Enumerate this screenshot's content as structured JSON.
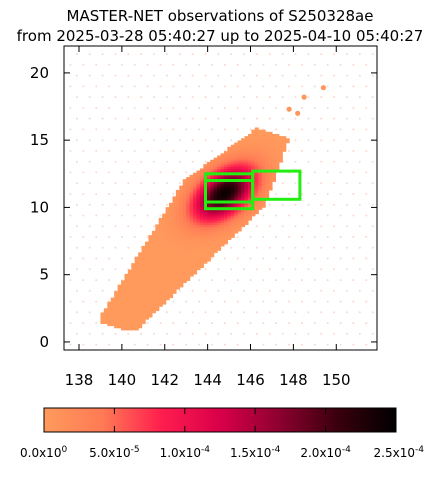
{
  "chart_data": {
    "type": "heatmap",
    "title": "MASTER-NET observations of S250328ae",
    "subtitle": "from 2025-03-28 05:40:27 up to 2025-04-10 05:40:27",
    "xlim": [
      137.3,
      151.9
    ],
    "ylim": [
      -0.6,
      22.0
    ],
    "x_ticks": [
      "138",
      "140",
      "142",
      "144",
      "146",
      "148",
      "150"
    ],
    "x_tick_values": [
      138,
      140,
      142,
      144,
      146,
      148,
      150
    ],
    "y_ticks": [
      "0",
      "5",
      "10",
      "15",
      "20"
    ],
    "y_tick_values": [
      0,
      5,
      10,
      15,
      20
    ],
    "colorbar": {
      "range": [
        0,
        0.00025
      ],
      "ticks": [
        "0.0x10",
        "5.0x10",
        "1.0x10",
        "1.5x10",
        "2.0x10",
        "2.5x10"
      ],
      "exponents": [
        "0",
        "-5",
        "-4",
        "-4",
        "-4",
        "-4"
      ],
      "tick_values": [
        0,
        5e-05,
        0.0001,
        0.00015,
        0.0002,
        0.00025
      ],
      "colors": [
        "#ff9a5c",
        "#ff7a55",
        "#ff1e4e",
        "#d9004a",
        "#8e0030",
        "#3a000e",
        "#000000"
      ]
    },
    "probability_region": {
      "center": [
        144.7,
        11.0
      ],
      "major_axis_deg": 63,
      "extent_major": [
        -11.2,
        5.0
      ],
      "half_width": 2.1,
      "peak": 0.00025
    },
    "sparse_patches": [
      {
        "x": 149.4,
        "y": 18.9
      },
      {
        "x": 148.5,
        "y": 18.2
      },
      {
        "x": 147.8,
        "y": 17.3
      },
      {
        "x": 148.2,
        "y": 17.0
      }
    ],
    "observed_fields": [
      {
        "xmin": 143.9,
        "xmax": 146.1,
        "ymin": 10.4,
        "ymax": 12.5
      },
      {
        "xmin": 143.9,
        "xmax": 146.1,
        "ymin": 9.9,
        "ymax": 12.0
      },
      {
        "xmin": 146.1,
        "xmax": 148.3,
        "ymin": 10.6,
        "ymax": 12.7
      }
    ],
    "field_color": "#22ee11",
    "background_dot_color": "#f7d9cf"
  }
}
